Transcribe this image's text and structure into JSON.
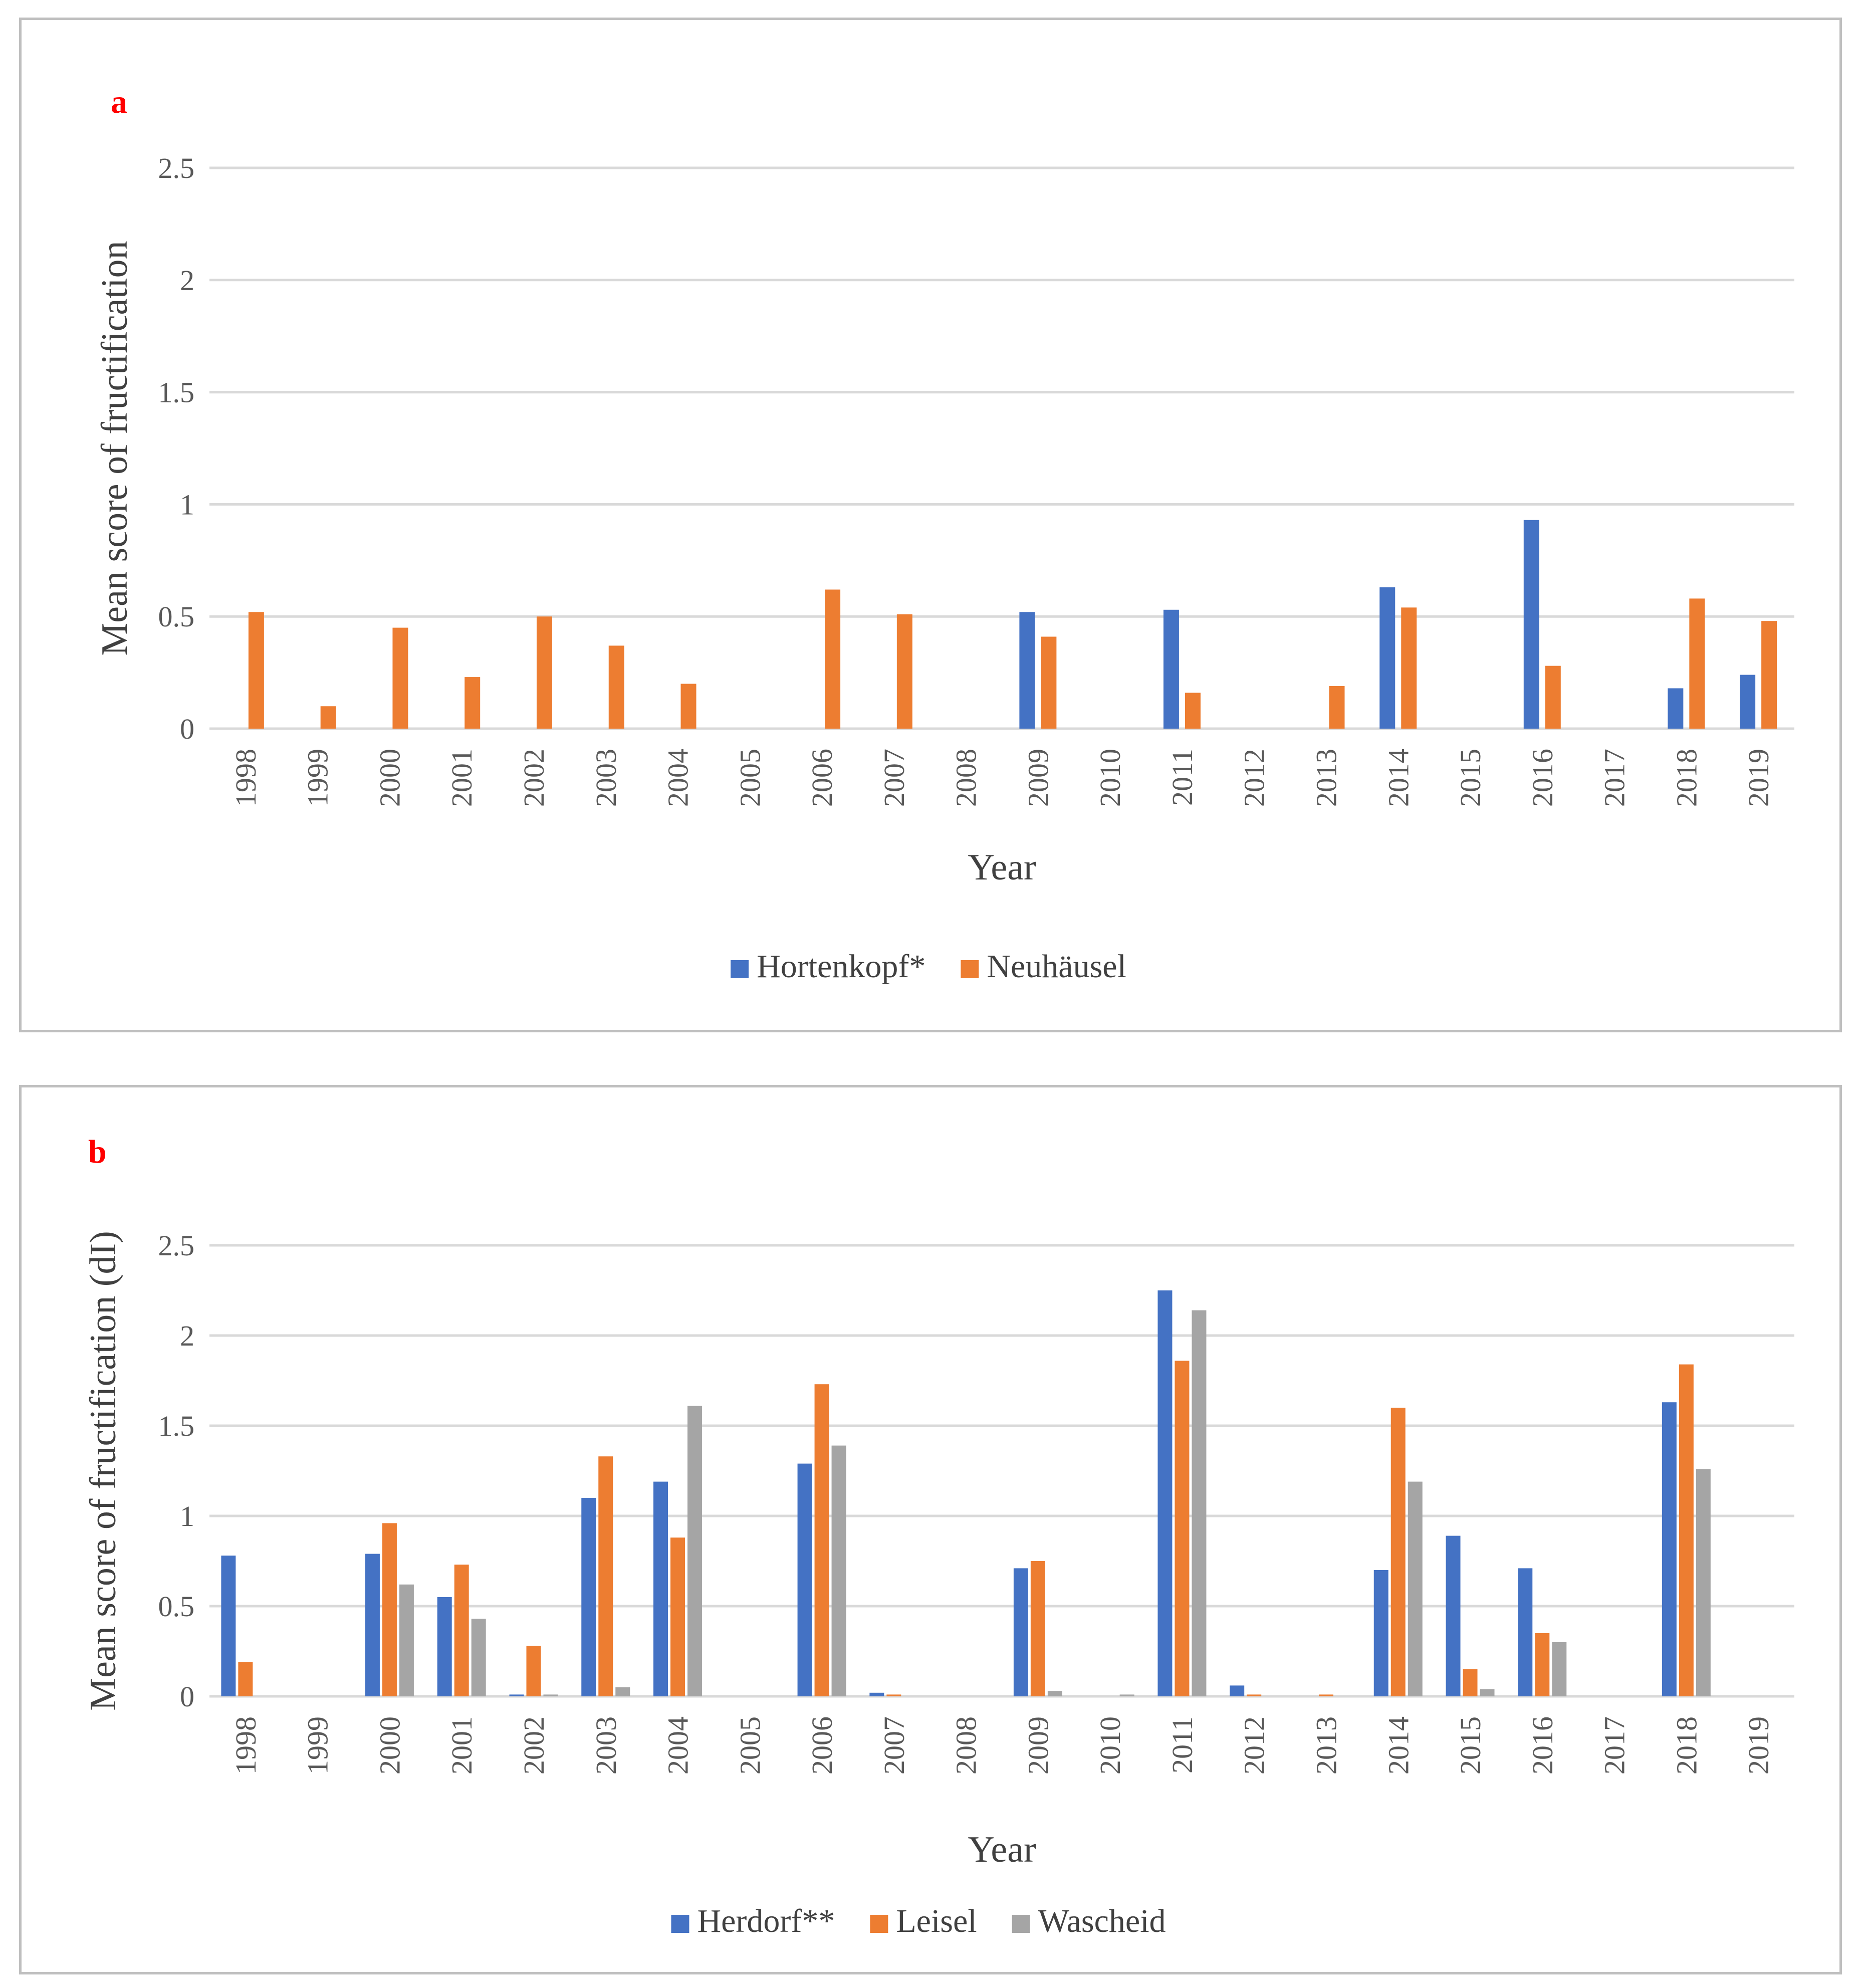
{
  "chart_data": [
    {
      "type": "bar",
      "panel_label": "a",
      "title": "",
      "xlabel": "Year",
      "ylabel": "Mean score of fructification",
      "ylim": [
        0,
        2.5
      ],
      "yticks": [
        "0",
        "0.5",
        "1",
        "1.5",
        "2",
        "2.5"
      ],
      "grid": true,
      "legend_position": "bottom",
      "categories": [
        "1998",
        "1999",
        "2000",
        "2001",
        "2002",
        "2003",
        "2004",
        "2005",
        "2006",
        "2007",
        "2008",
        "2009",
        "2010",
        "2011",
        "2012",
        "2013",
        "2014",
        "2015",
        "2016",
        "2017",
        "2018",
        "2019"
      ],
      "series": [
        {
          "name": "Hortenkopf*",
          "color": "#4472c4",
          "values": [
            0,
            0,
            0,
            0,
            0,
            0,
            0,
            0,
            0,
            0,
            0,
            0.52,
            0,
            0.53,
            0,
            0,
            0.63,
            0,
            0.93,
            0,
            0.18,
            0.24
          ]
        },
        {
          "name": "Neuhäusel",
          "color": "#ed7d31",
          "values": [
            0.52,
            0.1,
            0.45,
            0.23,
            0.5,
            0.37,
            0.2,
            0,
            0.62,
            0.51,
            0,
            0.41,
            0,
            0.16,
            0,
            0.19,
            0.54,
            0,
            0.28,
            0,
            0.58,
            0.48
          ]
        }
      ]
    },
    {
      "type": "bar",
      "panel_label": "b",
      "title": "",
      "xlabel": "Year",
      "ylabel": "Mean score of fructification (dI)",
      "ylim": [
        0,
        2.5
      ],
      "yticks": [
        "0",
        "0.5",
        "1",
        "1.5",
        "2",
        "2.5"
      ],
      "grid": true,
      "legend_position": "bottom",
      "categories": [
        "1998",
        "1999",
        "2000",
        "2001",
        "2002",
        "2003",
        "2004",
        "2005",
        "2006",
        "2007",
        "2008",
        "2009",
        "2010",
        "2011",
        "2012",
        "2013",
        "2014",
        "2015",
        "2016",
        "2017",
        "2018",
        "2019"
      ],
      "series": [
        {
          "name": "Herdorf**",
          "color": "#4472c4",
          "values": [
            0.78,
            0,
            0.79,
            0.55,
            0.01,
            1.1,
            1.19,
            0,
            1.29,
            0.02,
            0,
            0.71,
            0,
            2.25,
            0.06,
            0,
            0.7,
            0.89,
            0.71,
            0,
            1.63,
            0
          ]
        },
        {
          "name": "Leisel",
          "color": "#ed7d31",
          "values": [
            0.19,
            0,
            0.96,
            0.73,
            0.28,
            1.33,
            0.88,
            0,
            1.73,
            0.01,
            0,
            0.75,
            0,
            1.86,
            0.01,
            0.01,
            1.6,
            0.15,
            0.35,
            0,
            1.84,
            0
          ]
        },
        {
          "name": "Wascheid",
          "color": "#a5a5a5",
          "values": [
            0,
            0,
            0.62,
            0.43,
            0.01,
            0.05,
            1.61,
            0,
            1.39,
            0,
            0,
            0.03,
            0.01,
            2.14,
            0,
            0,
            1.19,
            0.04,
            0.3,
            0,
            1.26,
            0
          ]
        }
      ]
    }
  ]
}
